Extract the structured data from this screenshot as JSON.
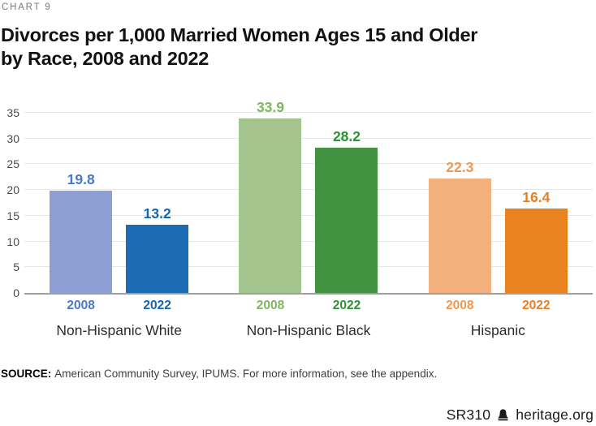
{
  "header": {
    "kicker": "CHART 9",
    "title_lines": [
      "Divorces per 1,000 Married Women Ages 15 and Older",
      "by Race, 2008 and 2022"
    ]
  },
  "chart_data": {
    "type": "bar",
    "title": "Divorces per 1,000 Married Women Ages 15 and Older by Race, 2008 and 2022",
    "categories": [
      "Non-Hispanic White",
      "Non-Hispanic Black",
      "Hispanic"
    ],
    "series": [
      {
        "name": "2008",
        "values": [
          19.8,
          33.9,
          22.3
        ]
      },
      {
        "name": "2022",
        "values": [
          13.2,
          28.2,
          16.4
        ]
      }
    ],
    "ylim": [
      0,
      35
    ],
    "yticks": [
      0,
      5,
      10,
      15,
      20,
      25,
      30,
      35
    ],
    "grid": true,
    "value_labels": "above each bar, colored to match bar",
    "bar_colors": [
      [
        "#8C9ED3",
        "#A4C48D",
        "#F5B17D"
      ],
      [
        "#1C6CB3",
        "#429341",
        "#E8831F"
      ]
    ],
    "label_colors": [
      [
        "#4B77CA",
        "#7EB75F",
        "#F0984E"
      ],
      [
        "#1565B2",
        "#2E9133",
        "#E87E20"
      ]
    ],
    "gridline_color": "#E6E6E6",
    "zero_line_color": "#9F9F9F"
  },
  "source": {
    "label": "SOURCE:",
    "text": "American Community Survey, IPUMS. For more information, see the appendix."
  },
  "footer": {
    "report_id": "SR310",
    "site": "heritage.org",
    "icon": "liberty-bell-icon"
  }
}
